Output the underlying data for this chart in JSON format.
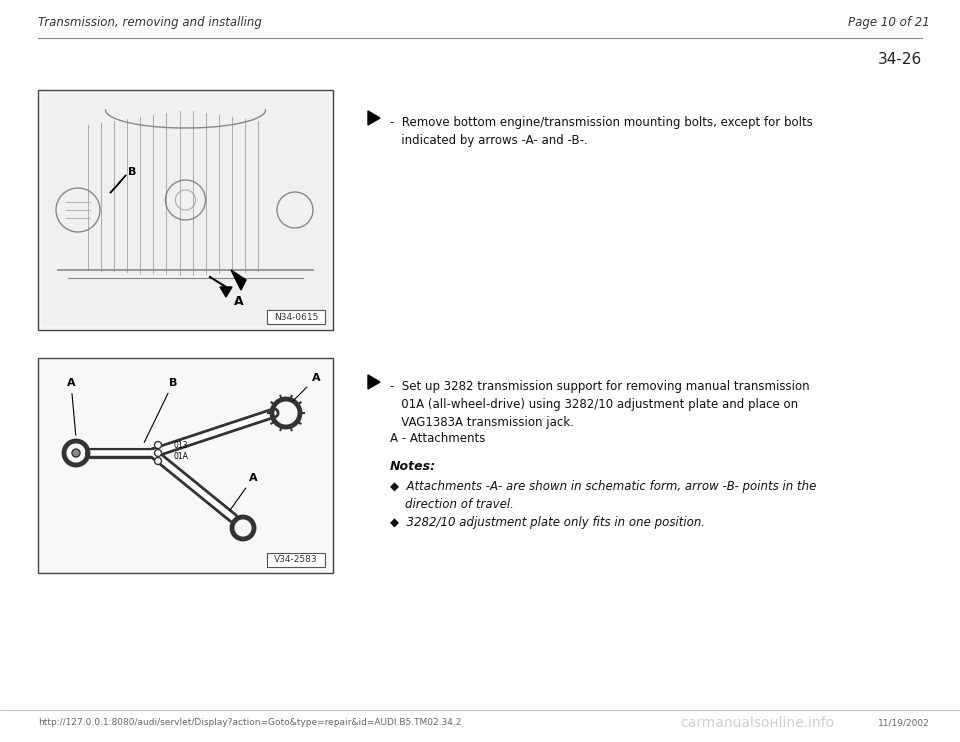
{
  "bg_color": "#ffffff",
  "header_left": "Transmission, removing and installing",
  "header_right": "Page 10 of 21",
  "page_number": "34-26",
  "footer_url": "http://127.0.0.1:8080/audi/servlet/Display?action=Goto&type=repair&id=AUDI.B5.TM02.34.2",
  "footer_date": "11/19/2002",
  "footer_logo": "carmanualsонline.info",
  "img1_label": "N34-0615",
  "img2_label": "V34-2583",
  "text1": "-  Remove bottom engine/transmission mounting bolts, except for bolts\n   indicated by arrows -A- and -B-.",
  "text2a": "-  Set up 3282 transmission support for removing manual transmission\n   01A (all-wheel-drive) using 3282/10 adjustment plate and place on\n   VAG1383A transmission jack.",
  "text2b": "A - Attachments",
  "notes_title": "Notes:",
  "note1": "◆  Attachments -A- are shown in schematic form, arrow -B- points in the\n    direction of travel.",
  "note2": "◆  3282/10 adjustment plate only fits in one position."
}
